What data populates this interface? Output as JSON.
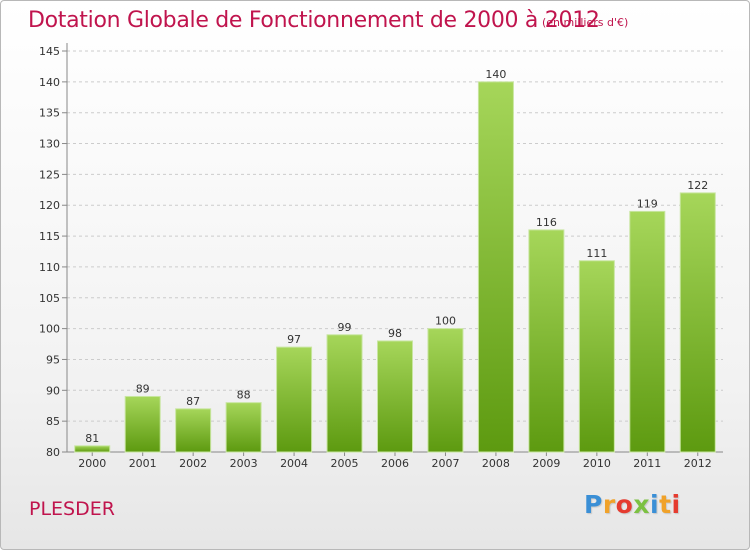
{
  "header": {
    "title": "Dotation Globale de Fonctionnement de 2000 à 2012",
    "unit": "(en milliers d'€)"
  },
  "footer": {
    "commune": "PLESDER",
    "logo_letters": [
      "P",
      "r",
      "o",
      "x",
      "i",
      "t",
      "i"
    ],
    "logo_colors": [
      "#3a8fd6",
      "#f0a22a",
      "#e53b2f",
      "#7cc142",
      "#3a8fd6",
      "#f0a22a",
      "#e53b2f"
    ]
  },
  "colors": {
    "bar_light": "#a6d65a",
    "bar_dark": "#5d9a10",
    "title": "#c0144d",
    "grid": "#cccccc"
  },
  "chart_data": {
    "type": "bar",
    "categories": [
      "2000",
      "2001",
      "2002",
      "2003",
      "2004",
      "2005",
      "2006",
      "2007",
      "2008",
      "2009",
      "2010",
      "2011",
      "2012"
    ],
    "values": [
      81,
      89,
      87,
      88,
      97,
      99,
      98,
      100,
      140,
      116,
      111,
      119,
      122
    ],
    "ylim": [
      80,
      145
    ],
    "yticks": [
      80,
      85,
      90,
      95,
      100,
      105,
      110,
      115,
      120,
      125,
      130,
      135,
      140,
      145
    ],
    "grid": true,
    "data_labels": true,
    "title": "Dotation Globale de Fonctionnement de 2000 à 2012"
  }
}
